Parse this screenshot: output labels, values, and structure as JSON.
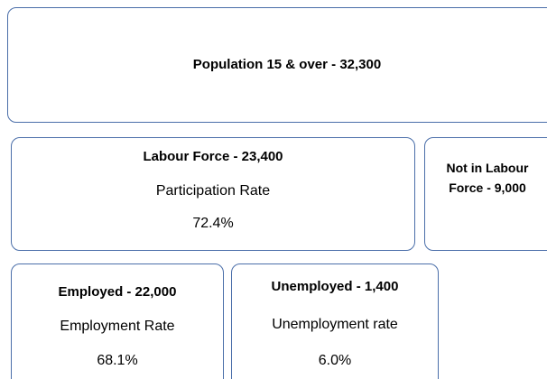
{
  "nodes": [
    {
      "label": "Population 15 & over - 32,300"
    },
    {
      "label": "Labour Force - 23,400",
      "rate_label": "Participation Rate",
      "rate": "72.4%"
    },
    {
      "label": "Not in Labour Force - 9,000"
    },
    {
      "label": "Employed - 22,000",
      "rate_label": "Employment Rate",
      "rate": "68.1%"
    },
    {
      "label": "Unemployed - 1,400",
      "rate_label": "Unemployment rate",
      "rate": "6.0%"
    }
  ]
}
